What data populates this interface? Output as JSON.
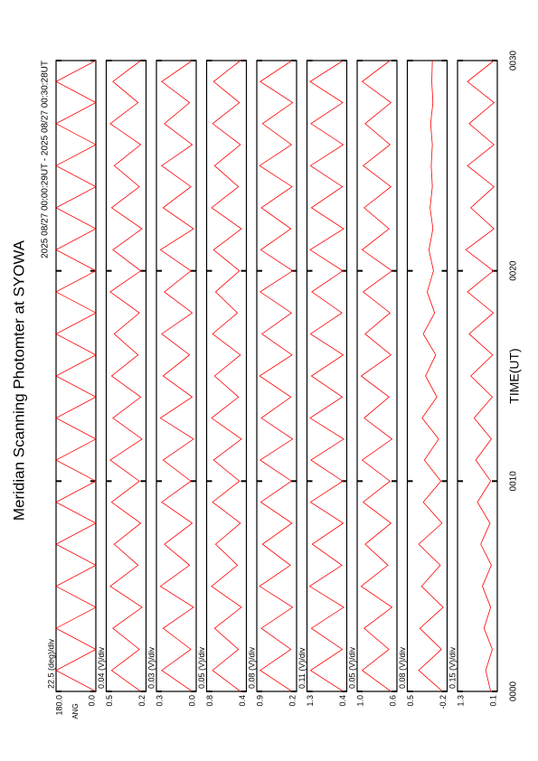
{
  "chart_data": {
    "type": "line",
    "title": "Meridian Scanning Photomter at SYOWA",
    "subtitle": "2025 08/27 00:00:29UT - 2025 08/27 00:30:28UT",
    "x_label": "TIME(UT)",
    "x": [
      0,
      1,
      2,
      3,
      4,
      5,
      6,
      7,
      8,
      9,
      10,
      11,
      12,
      13,
      14,
      15,
      16,
      17,
      18,
      19,
      20,
      21,
      22,
      23,
      24,
      25,
      26,
      27,
      28,
      29,
      30
    ],
    "xlim": [
      0,
      30
    ],
    "xticks": [
      {
        "value": 0,
        "label": "0000"
      },
      {
        "value": 10,
        "label": "0010"
      },
      {
        "value": 20,
        "label": "0020"
      },
      {
        "value": 30,
        "label": "0030"
      }
    ],
    "color": "#ff0000",
    "panels": [
      {
        "scale_label": "22.5 (deg)/div",
        "ylabel": "ANG",
        "ylim": [
          0,
          180
        ],
        "yticks": [
          {
            "value": 0,
            "label": "0.0"
          },
          {
            "value": 180,
            "label": "180.0"
          }
        ],
        "values": [
          0,
          180,
          0,
          180,
          0,
          180,
          0,
          180,
          0,
          180,
          0,
          180,
          0,
          180,
          0,
          180,
          0,
          180,
          0,
          180,
          0,
          180,
          0,
          180,
          0,
          180,
          0,
          180,
          0,
          180,
          0
        ]
      },
      {
        "scale_label": "0.04 (V)/div",
        "ylim": [
          0.2,
          0.5
        ],
        "yticks": [
          0.2,
          0.5
        ],
        "values": [
          0.24,
          0.46,
          0.25,
          0.45,
          0.23,
          0.47,
          0.26,
          0.44,
          0.24,
          0.46,
          0.25,
          0.47,
          0.23,
          0.45,
          0.24,
          0.46,
          0.26,
          0.44,
          0.25,
          0.47,
          0.24,
          0.45,
          0.23,
          0.46,
          0.25,
          0.44,
          0.24,
          0.47,
          0.26,
          0.45,
          0.24
        ]
      },
      {
        "scale_label": "0.03 (V)/div",
        "ylim": [
          0.0,
          0.3
        ],
        "yticks": [
          {
            "value": 0,
            "label": "0.0"
          },
          0.3
        ],
        "values": [
          0.03,
          0.26,
          0.04,
          0.25,
          0.02,
          0.27,
          0.05,
          0.24,
          0.03,
          0.26,
          0.04,
          0.25,
          0.02,
          0.27,
          0.03,
          0.25,
          0.05,
          0.26,
          0.03,
          0.24,
          0.04,
          0.27,
          0.02,
          0.25,
          0.04,
          0.26,
          0.03,
          0.24,
          0.05,
          0.26,
          0.03
        ]
      },
      {
        "scale_label": "0.05 (V)/div",
        "ylim": [
          0.4,
          0.8
        ],
        "yticks": [
          0.4,
          0.8
        ],
        "values": [
          0.46,
          0.74,
          0.48,
          0.72,
          0.45,
          0.75,
          0.49,
          0.71,
          0.46,
          0.74,
          0.47,
          0.73,
          0.45,
          0.75,
          0.48,
          0.72,
          0.46,
          0.74,
          0.49,
          0.71,
          0.47,
          0.73,
          0.45,
          0.75,
          0.48,
          0.72,
          0.46,
          0.74,
          0.47,
          0.73,
          0.46
        ]
      },
      {
        "scale_label": "0.08 (V)/div",
        "ylim": [
          0.2,
          0.9
        ],
        "yticks": [
          0.2,
          0.9
        ],
        "values": [
          0.28,
          0.84,
          0.3,
          0.82,
          0.27,
          0.85,
          0.31,
          0.8,
          0.28,
          0.83,
          0.29,
          0.84,
          0.27,
          0.82,
          0.3,
          0.85,
          0.28,
          0.81,
          0.29,
          0.84,
          0.27,
          0.83,
          0.3,
          0.82,
          0.28,
          0.85,
          0.29,
          0.8,
          0.27,
          0.84,
          0.28
        ]
      },
      {
        "scale_label": "0.11 (V)/div",
        "ylim": [
          0.4,
          1.3
        ],
        "yticks": [
          0.4,
          1.3
        ],
        "values": [
          0.48,
          1.22,
          0.5,
          1.2,
          0.47,
          1.24,
          0.51,
          1.18,
          0.48,
          1.22,
          0.49,
          1.21,
          0.47,
          1.23,
          0.5,
          1.2,
          0.48,
          1.22,
          0.51,
          1.19,
          0.49,
          1.23,
          0.47,
          1.2,
          0.5,
          1.22,
          0.48,
          1.21,
          0.49,
          1.23,
          0.48
        ]
      },
      {
        "scale_label": "0.05 (V)/div",
        "ylim": [
          0.6,
          1.0
        ],
        "yticks": [
          0.6,
          {
            "value": 1.0,
            "label": "1.0"
          }
        ],
        "values": [
          0.66,
          0.95,
          0.68,
          0.93,
          0.65,
          0.96,
          0.69,
          0.92,
          0.66,
          0.94,
          0.67,
          0.95,
          0.65,
          0.93,
          0.68,
          0.96,
          0.66,
          0.92,
          0.67,
          0.94,
          0.65,
          0.95,
          0.68,
          0.93,
          0.66,
          0.94,
          0.67,
          0.92,
          0.66,
          0.95,
          0.67
        ]
      },
      {
        "scale_label": "0.08 (V)/div",
        "ylim": [
          -0.2,
          0.5
        ],
        "yticks": [
          -0.2,
          0.5
        ],
        "values": [
          -0.12,
          0.3,
          -0.1,
          0.28,
          -0.13,
          0.25,
          -0.08,
          0.3,
          -0.11,
          0.22,
          -0.09,
          0.2,
          -0.05,
          0.24,
          -0.02,
          0.18,
          0.0,
          0.22,
          0.02,
          0.15,
          0.04,
          0.12,
          0.05,
          0.1,
          0.06,
          0.08,
          0.06,
          0.09,
          0.05,
          0.07,
          0.06
        ]
      },
      {
        "scale_label": "0.15 (V)/div",
        "ylim": [
          0.1,
          1.3
        ],
        "yticks": [
          0.1,
          1.3
        ],
        "values": [
          0.3,
          0.45,
          0.25,
          0.5,
          0.3,
          0.55,
          0.28,
          0.6,
          0.32,
          0.7,
          0.3,
          0.75,
          0.28,
          0.8,
          0.25,
          0.9,
          0.24,
          0.95,
          0.22,
          1.0,
          0.22,
          1.05,
          0.2,
          0.9,
          0.2,
          1.0,
          0.2,
          0.95,
          0.2,
          1.0,
          0.2
        ]
      }
    ]
  }
}
